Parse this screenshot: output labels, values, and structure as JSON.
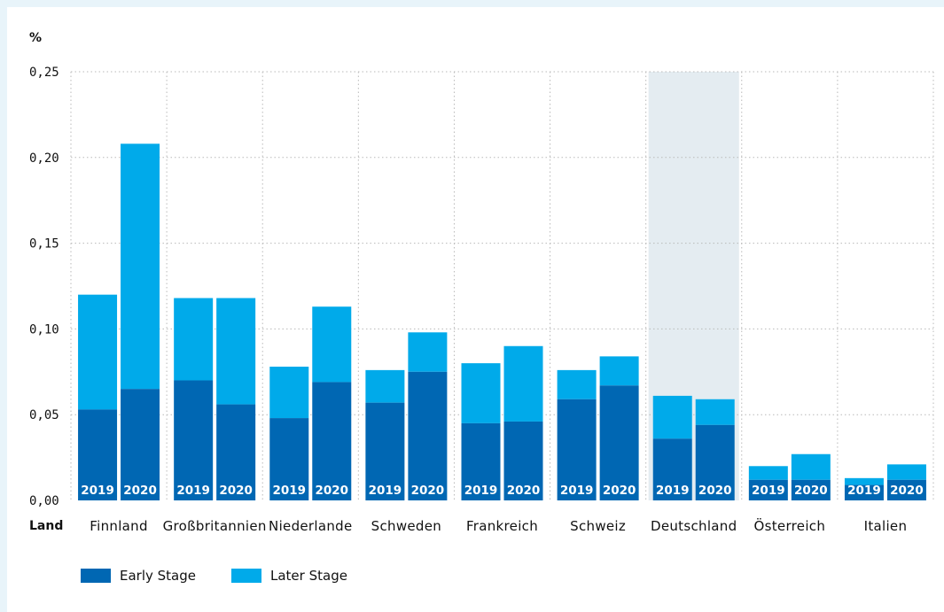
{
  "chart_data": {
    "type": "bar",
    "stacked": true,
    "unit_label": "%",
    "x_axis_label": "Land",
    "ylim": [
      0,
      0.25
    ],
    "yticks": [
      "0,00",
      "0,05",
      "0,10",
      "0,15",
      "0,20",
      "0,25"
    ],
    "ytick_values": [
      0,
      0.05,
      0.1,
      0.15,
      0.2,
      0.25
    ],
    "grid": "dotted",
    "highlighted_category": "Deutschland",
    "years": [
      "2019",
      "2020"
    ],
    "categories": [
      "Finnland",
      "Großbritannien",
      "Niederlande",
      "Schweden",
      "Frankreich",
      "Schweiz",
      "Deutschland",
      "Österreich",
      "Italien"
    ],
    "series": [
      {
        "name": "Early Stage",
        "color": "#0067b3",
        "values": [
          [
            0.053,
            0.065
          ],
          [
            0.07,
            0.056
          ],
          [
            0.048,
            0.069
          ],
          [
            0.057,
            0.075
          ],
          [
            0.045,
            0.046
          ],
          [
            0.059,
            0.067
          ],
          [
            0.036,
            0.044
          ],
          [
            0.012,
            0.012
          ],
          [
            0.009,
            0.012
          ]
        ]
      },
      {
        "name": "Later Stage",
        "color": "#00aaea",
        "values": [
          [
            0.067,
            0.143
          ],
          [
            0.048,
            0.062
          ],
          [
            0.03,
            0.044
          ],
          [
            0.019,
            0.023
          ],
          [
            0.035,
            0.044
          ],
          [
            0.017,
            0.017
          ],
          [
            0.025,
            0.015
          ],
          [
            0.008,
            0.015
          ],
          [
            0.004,
            0.009
          ]
        ]
      }
    ]
  }
}
